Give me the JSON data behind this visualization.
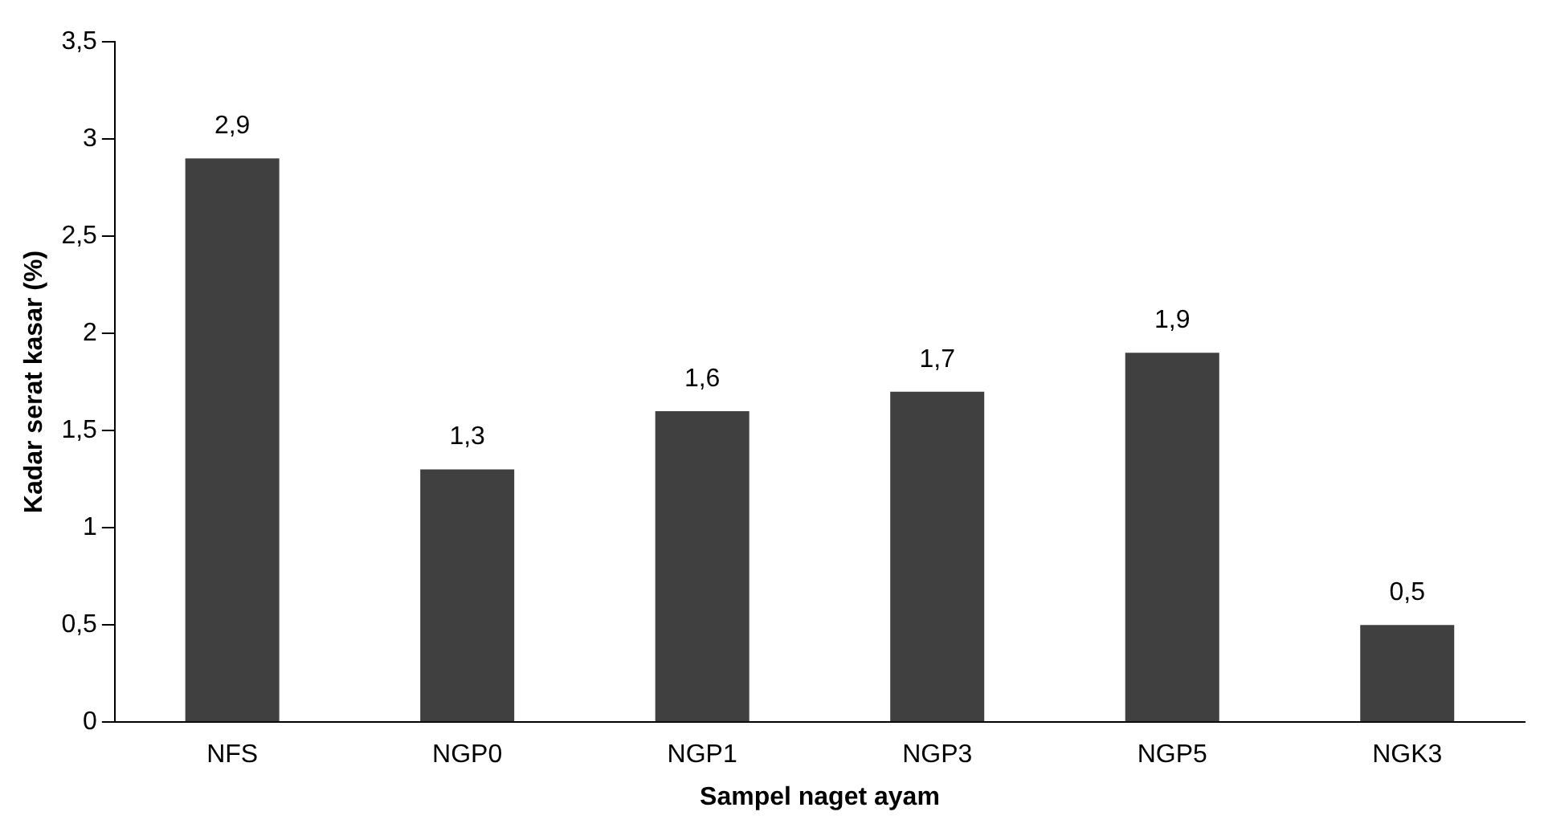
{
  "chart_data": {
    "type": "bar",
    "xlabel": "Sampel naget ayam",
    "ylabel": "Kadar serat kasar (%)",
    "categories": [
      "NFS",
      "NGP0",
      "NGP1",
      "NGP3",
      "NGP5",
      "NGK3"
    ],
    "values": [
      2.9,
      1.3,
      1.6,
      1.7,
      1.9,
      0.5
    ],
    "color": "#404040",
    "ylim": [
      0,
      3.5
    ],
    "yticks": [
      0,
      {
        "value": 0.5,
        "label": "0,5"
      },
      1,
      {
        "value": 1.5,
        "label": "1,5"
      },
      2,
      {
        "value": 2.5,
        "label": "2,5"
      },
      3,
      {
        "value": 3.5,
        "label": "3,5"
      }
    ],
    "value_labels": [
      "2,9",
      "1,3",
      "1,6",
      "1,7",
      "1,9",
      "0,5"
    ],
    "grid": false,
    "legend": false
  }
}
